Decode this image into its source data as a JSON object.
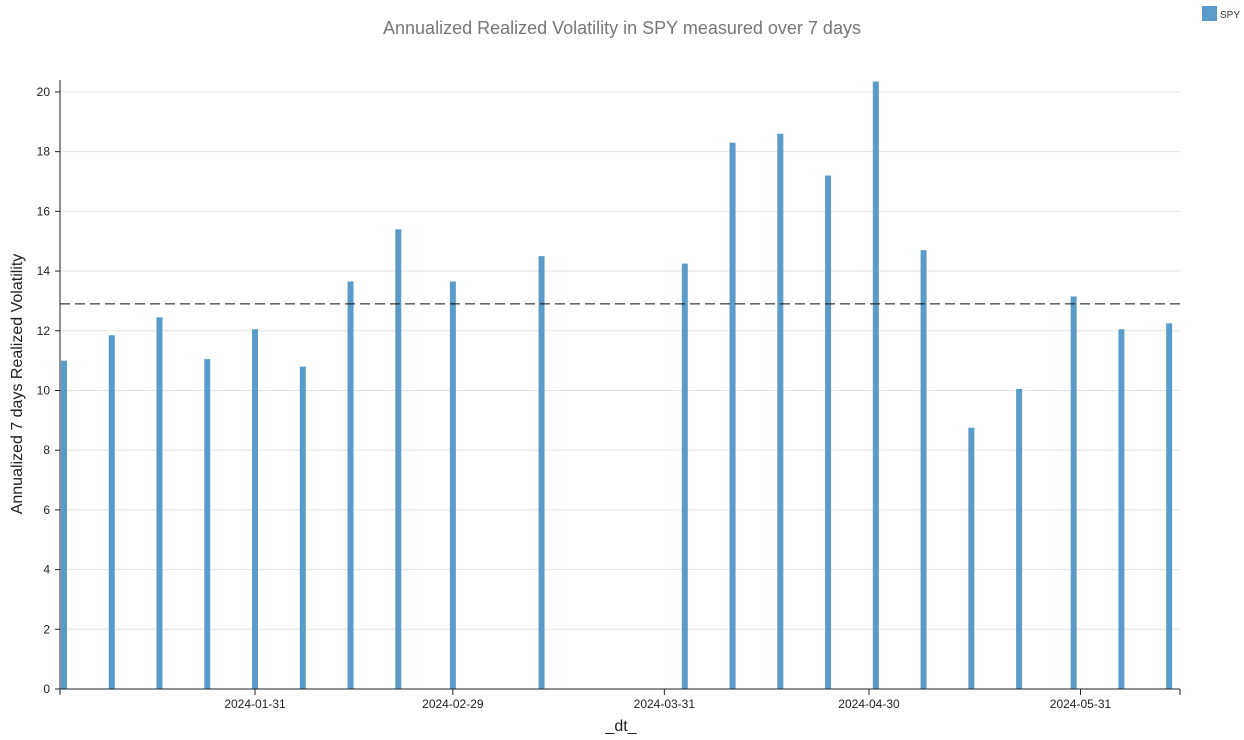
{
  "chart_data": {
    "type": "bar",
    "title": "Annualized Realized Volatility in SPY measured over 7 days",
    "xlabel": "_dt_",
    "ylabel": "Annualized 7 days Realized Volatility",
    "ylim": [
      0,
      20.4
    ],
    "yticks": [
      0,
      2,
      4,
      6,
      8,
      10,
      12,
      14,
      16,
      18,
      20
    ],
    "xlim": [
      "2024-01-03",
      "2024-06-14"
    ],
    "xticks": [
      "2024-01-31",
      "2024-02-29",
      "2024-03-31",
      "2024-04-30",
      "2024-05-31"
    ],
    "grid": true,
    "legend_position": "top-right",
    "reference_line": {
      "value": 12.9,
      "style": "dashed"
    },
    "series": [
      {
        "name": "SPY",
        "color": "#5b9bc9",
        "points": [
          {
            "x": "2024-01-03",
            "y": 11.0
          },
          {
            "x": "2024-01-10",
            "y": 11.85
          },
          {
            "x": "2024-01-17",
            "y": 12.45
          },
          {
            "x": "2024-01-24",
            "y": 11.05
          },
          {
            "x": "2024-01-31",
            "y": 12.05
          },
          {
            "x": "2024-02-07",
            "y": 10.8
          },
          {
            "x": "2024-02-14",
            "y": 13.65
          },
          {
            "x": "2024-02-21",
            "y": 15.4
          },
          {
            "x": "2024-02-29",
            "y": 13.65
          },
          {
            "x": "2024-03-13",
            "y": 14.5
          },
          {
            "x": "2024-04-03",
            "y": 14.25
          },
          {
            "x": "2024-04-10",
            "y": 18.3
          },
          {
            "x": "2024-04-17",
            "y": 18.6
          },
          {
            "x": "2024-04-24",
            "y": 17.2
          },
          {
            "x": "2024-05-01",
            "y": 20.35
          },
          {
            "x": "2024-05-08",
            "y": 14.7
          },
          {
            "x": "2024-05-15",
            "y": 8.75
          },
          {
            "x": "2024-05-22",
            "y": 10.05
          },
          {
            "x": "2024-05-30",
            "y": 13.15
          },
          {
            "x": "2024-06-06",
            "y": 12.05
          },
          {
            "x": "2024-06-13",
            "y": 12.25
          }
        ]
      }
    ]
  }
}
